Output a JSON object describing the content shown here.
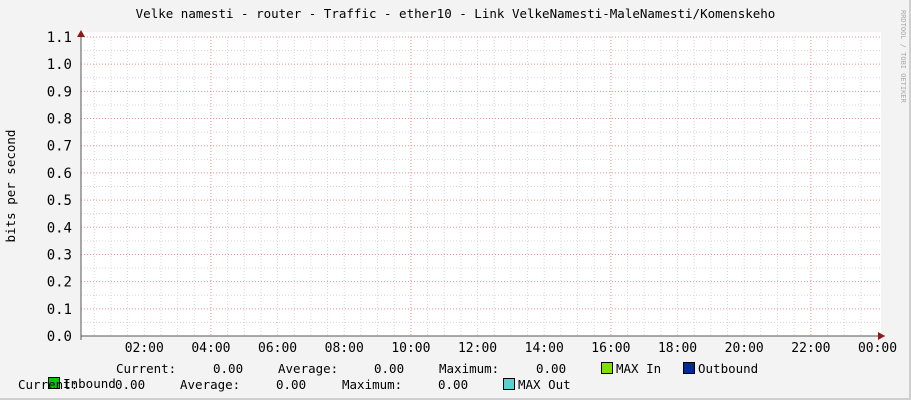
{
  "chart_data": {
    "type": "line",
    "title": "Velke namesti - router - Traffic - ether10 - Link VelkeNamesti-MaleNamesti/Komenskeho",
    "ylabel": "bits per second",
    "xlabel": "",
    "ylim": [
      0,
      1.1
    ],
    "y_ticks": [
      "0.0",
      "0.1",
      "0.2",
      "0.3",
      "0.4",
      "0.5",
      "0.6",
      "0.7",
      "0.8",
      "0.9",
      "1.0",
      "1.1"
    ],
    "x_ticks": [
      "02:00",
      "04:00",
      "06:00",
      "08:00",
      "10:00",
      "12:00",
      "14:00",
      "16:00",
      "18:00",
      "20:00",
      "22:00",
      "00:00"
    ],
    "grid": true,
    "watermark": "RRDTOOL / TOBI OETIKER",
    "series": [
      {
        "name": "Inbound",
        "color": "#00cc00",
        "values": [
          0,
          0
        ]
      },
      {
        "name": "MAX In",
        "color": "#7fe000",
        "values": [
          0,
          0
        ]
      },
      {
        "name": "Outbound",
        "color": "#002a97",
        "values": [
          0,
          0
        ]
      },
      {
        "name": "MAX Out",
        "color": "#5ad1d1",
        "values": [
          0,
          0
        ]
      }
    ]
  },
  "legend": {
    "inbound": {
      "label": "Inbound",
      "current_label": "Current:",
      "current": "0.00",
      "average_label": "Average:",
      "average": "0.00",
      "maximum_label": "Maximum:",
      "maximum": "0.00"
    },
    "max_in": "MAX In",
    "outbound": {
      "label": "Outbound",
      "current_label": "Current:",
      "current": "0.00",
      "average_label": "Average:",
      "average": "0.00",
      "maximum_label": "Maximum:",
      "maximum": "0.00"
    },
    "max_out": "MAX Out"
  }
}
